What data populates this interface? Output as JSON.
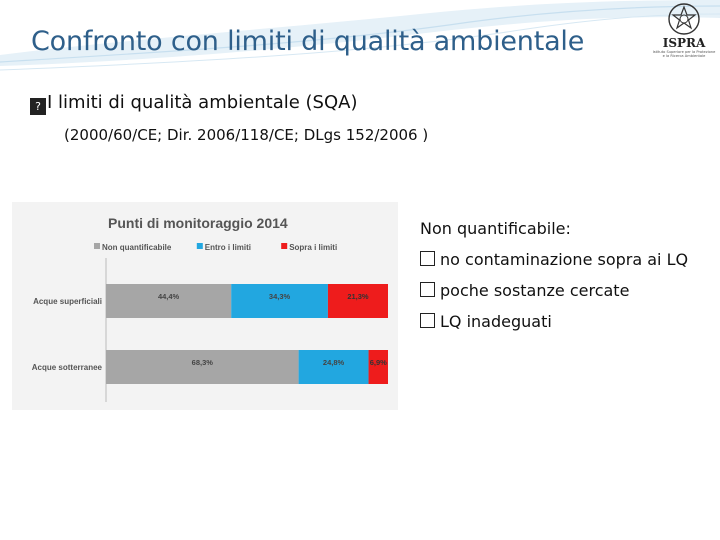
{
  "slide": {
    "title": "Confronto con limiti di qualità ambientale",
    "logo": {
      "text": "ISPRA",
      "subtitle": "Istituto Superiore per la Protezione e la Ricerca Ambientale",
      "emblem": "italian-republic-emblem-icon"
    },
    "bullet_icon": "?",
    "bullet": "I limiti di qualità ambientale (SQA)",
    "references": "(2000/60/CE; Dir. 2006/118/CE; DLgs 152/2006 )",
    "notes": {
      "heading": "Non quantificabile:",
      "items": [
        "no contaminazione sopra ai LQ",
        "poche sostanze cercate",
        "LQ inadeguati"
      ]
    }
  },
  "chart_data": {
    "type": "bar",
    "orientation": "horizontal",
    "stacked": true,
    "title": "Punti di monitoraggio 2014",
    "legend_position": "top",
    "grid": false,
    "categories": [
      "Acque superficiali",
      "Acque sotterranee"
    ],
    "xlim": [
      0,
      100
    ],
    "series": [
      {
        "name": "Non quantificabile",
        "color": "#a6a6a6",
        "values": [
          44.4,
          68.3
        ],
        "labels": [
          "44,4%",
          "68,3%"
        ]
      },
      {
        "name": "Entro i limiti",
        "color": "#22a7e0",
        "values": [
          34.3,
          24.8
        ],
        "labels": [
          "34,3%",
          "24,8%"
        ]
      },
      {
        "name": "Sopra i limiti",
        "color": "#ee1c1c",
        "values": [
          21.3,
          6.9
        ],
        "labels": [
          "21,3%",
          "6,9%"
        ]
      }
    ]
  }
}
